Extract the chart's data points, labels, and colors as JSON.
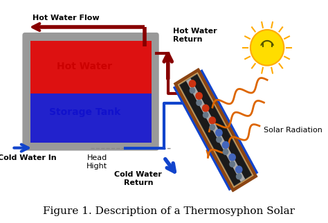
{
  "title": "Figure 1. Description of a Thermosyphon Solar",
  "title_fontsize": 11,
  "bg_color": "#ffffff",
  "tank_border_color": "#999999",
  "tank_hot_color": "#dd1111",
  "tank_cold_color": "#2222cc",
  "tank_label_hot": "Hot Water",
  "tank_label_cold": "Storage Tank",
  "label_color_hot": "#cc0000",
  "label_color_cold": "#1111cc",
  "hot_water_flow_label": "Hot Water Flow",
  "cold_water_in_label": "Cold Water In",
  "hot_water_return_label": "Hot Water\nReturn",
  "cold_water_return_label": "Cold Water\nReturn",
  "head_hight_label": "Head\nHight",
  "solar_radiation_label": "Solar Radiation",
  "text_color": "#000000",
  "arrow_red": "#880000",
  "arrow_blue": "#1144cc",
  "sun_color": "#ffdd00",
  "sun_stroke": "#ffaa00",
  "wave_color": "#dd6600",
  "collector_frame": "#8B4513",
  "collector_inner": "#c8a060",
  "collector_bg": "#1a1a1a",
  "collector_gray": "#aaaaaa"
}
